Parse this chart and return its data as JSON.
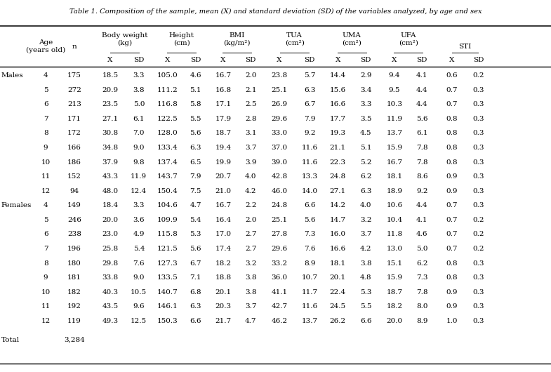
{
  "title": "Table 1. Composition of the sample, mean (X) and standard deviation (SD) of the variables analyzed, by age and sex",
  "rows": [
    [
      "Males",
      "4",
      "175",
      "18.5",
      "3.3",
      "105.0",
      "4.6",
      "16.7",
      "2.0",
      "23.8",
      "5.7",
      "14.4",
      "2.9",
      "9.4",
      "4.1",
      "0.6",
      "0.2"
    ],
    [
      "",
      "5",
      "272",
      "20.9",
      "3.8",
      "111.2",
      "5.1",
      "16.8",
      "2.1",
      "25.1",
      "6.3",
      "15.6",
      "3.4",
      "9.5",
      "4.4",
      "0.7",
      "0.3"
    ],
    [
      "",
      "6",
      "213",
      "23.5",
      "5.0",
      "116.8",
      "5.8",
      "17.1",
      "2.5",
      "26.9",
      "6.7",
      "16.6",
      "3.3",
      "10.3",
      "4.4",
      "0.7",
      "0.3"
    ],
    [
      "",
      "7",
      "171",
      "27.1",
      "6.1",
      "122.5",
      "5.5",
      "17.9",
      "2.8",
      "29.6",
      "7.9",
      "17.7",
      "3.5",
      "11.9",
      "5.6",
      "0.8",
      "0.3"
    ],
    [
      "",
      "8",
      "172",
      "30.8",
      "7.0",
      "128.0",
      "5.6",
      "18.7",
      "3.1",
      "33.0",
      "9.2",
      "19.3",
      "4.5",
      "13.7",
      "6.1",
      "0.8",
      "0.3"
    ],
    [
      "",
      "9",
      "166",
      "34.8",
      "9.0",
      "133.4",
      "6.3",
      "19.4",
      "3.7",
      "37.0",
      "11.6",
      "21.1",
      "5.1",
      "15.9",
      "7.8",
      "0.8",
      "0.3"
    ],
    [
      "",
      "10",
      "186",
      "37.9",
      "9.8",
      "137.4",
      "6.5",
      "19.9",
      "3.9",
      "39.0",
      "11.6",
      "22.3",
      "5.2",
      "16.7",
      "7.8",
      "0.8",
      "0.3"
    ],
    [
      "",
      "11",
      "152",
      "43.3",
      "11.9",
      "143.7",
      "7.9",
      "20.7",
      "4.0",
      "42.8",
      "13.3",
      "24.8",
      "6.2",
      "18.1",
      "8.6",
      "0.9",
      "0.3"
    ],
    [
      "",
      "12",
      "94",
      "48.0",
      "12.4",
      "150.4",
      "7.5",
      "21.0",
      "4.2",
      "46.0",
      "14.0",
      "27.1",
      "6.3",
      "18.9",
      "9.2",
      "0.9",
      "0.3"
    ],
    [
      "Females",
      "4",
      "149",
      "18.4",
      "3.3",
      "104.6",
      "4.7",
      "16.7",
      "2.2",
      "24.8",
      "6.6",
      "14.2",
      "4.0",
      "10.6",
      "4.4",
      "0.7",
      "0.3"
    ],
    [
      "",
      "5",
      "246",
      "20.0",
      "3.6",
      "109.9",
      "5.4",
      "16.4",
      "2.0",
      "25.1",
      "5.6",
      "14.7",
      "3.2",
      "10.4",
      "4.1",
      "0.7",
      "0.2"
    ],
    [
      "",
      "6",
      "238",
      "23.0",
      "4.9",
      "115.8",
      "5.3",
      "17.0",
      "2.7",
      "27.8",
      "7.3",
      "16.0",
      "3.7",
      "11.8",
      "4.6",
      "0.7",
      "0.2"
    ],
    [
      "",
      "7",
      "196",
      "25.8",
      "5.4",
      "121.5",
      "5.6",
      "17.4",
      "2.7",
      "29.6",
      "7.6",
      "16.6",
      "4.2",
      "13.0",
      "5.0",
      "0.7",
      "0.2"
    ],
    [
      "",
      "8",
      "180",
      "29.8",
      "7.6",
      "127.3",
      "6.7",
      "18.2",
      "3.2",
      "33.2",
      "8.9",
      "18.1",
      "3.8",
      "15.1",
      "6.2",
      "0.8",
      "0.3"
    ],
    [
      "",
      "9",
      "181",
      "33.8",
      "9.0",
      "133.5",
      "7.1",
      "18.8",
      "3.8",
      "36.0",
      "10.7",
      "20.1",
      "4.8",
      "15.9",
      "7.3",
      "0.8",
      "0.3"
    ],
    [
      "",
      "10",
      "182",
      "40.3",
      "10.5",
      "140.7",
      "6.8",
      "20.1",
      "3.8",
      "41.1",
      "11.7",
      "22.4",
      "5.3",
      "18.7",
      "7.8",
      "0.9",
      "0.3"
    ],
    [
      "",
      "11",
      "192",
      "43.5",
      "9.6",
      "146.1",
      "6.3",
      "20.3",
      "3.7",
      "42.7",
      "11.6",
      "24.5",
      "5.5",
      "18.2",
      "8.0",
      "0.9",
      "0.3"
    ],
    [
      "",
      "12",
      "119",
      "49.3",
      "12.5",
      "150.3",
      "6.6",
      "21.7",
      "4.7",
      "46.2",
      "13.7",
      "26.2",
      "6.6",
      "20.0",
      "8.9",
      "1.0",
      "0.3"
    ]
  ],
  "total_n": "3,284",
  "bg_color": "#ffffff",
  "text_color": "#000000",
  "font_size": 7.5,
  "title_font_size": 7.2
}
